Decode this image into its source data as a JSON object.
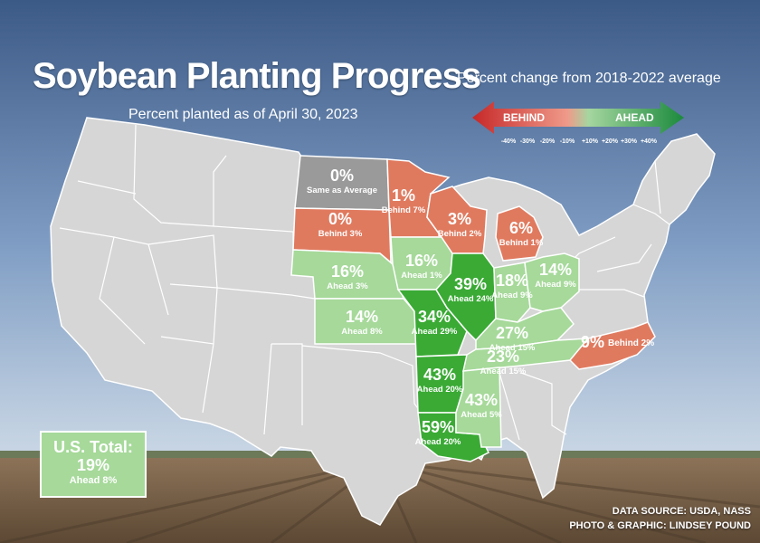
{
  "title": "Soybean Planting Progress",
  "subtitle": "Percent planted as of April 30, 2023",
  "legend": {
    "title": "Percent change from 2018-2022 average",
    "behind_label": "BEHIND",
    "ahead_label": "AHEAD",
    "ticks": [
      "-40%",
      "-30%",
      "-20%",
      "-10%",
      "+10%",
      "+20%",
      "+30%",
      "+40%"
    ],
    "colors": {
      "behind": "#e07a5f",
      "ahead": "#3aaa35",
      "same": "#9a9a9a",
      "no_data": "#d6d6d6"
    }
  },
  "states": [
    {
      "id": "ND",
      "pct": "0%",
      "note": "Same as Average",
      "status": "same"
    },
    {
      "id": "SD",
      "pct": "0%",
      "note": "Behind 3%",
      "status": "behind"
    },
    {
      "id": "NE",
      "pct": "16%",
      "note": "Ahead 3%",
      "status": "ahead"
    },
    {
      "id": "KS",
      "pct": "14%",
      "note": "Ahead 8%",
      "status": "ahead"
    },
    {
      "id": "MN",
      "pct": "1%",
      "note": "Behind 7%",
      "status": "behind"
    },
    {
      "id": "IA",
      "pct": "16%",
      "note": "Ahead 1%",
      "status": "ahead"
    },
    {
      "id": "MO",
      "pct": "34%",
      "note": "Ahead 29%",
      "status": "ahead"
    },
    {
      "id": "AR",
      "pct": "43%",
      "note": "Ahead 20%",
      "status": "ahead"
    },
    {
      "id": "LA",
      "pct": "59%",
      "note": "Ahead 20%",
      "status": "ahead"
    },
    {
      "id": "WI",
      "pct": "3%",
      "note": "Behind 2%",
      "status": "behind"
    },
    {
      "id": "IL",
      "pct": "39%",
      "note": "Ahead 24%",
      "status": "ahead"
    },
    {
      "id": "MI",
      "pct": "6%",
      "note": "Behind 1%",
      "status": "behind"
    },
    {
      "id": "IN",
      "pct": "18%",
      "note": "Ahead 9%",
      "status": "ahead"
    },
    {
      "id": "OH",
      "pct": "14%",
      "note": "Ahead 9%",
      "status": "ahead"
    },
    {
      "id": "KY",
      "pct": "27%",
      "note": "Ahead 15%",
      "status": "ahead"
    },
    {
      "id": "TN",
      "pct": "23%",
      "note": "Ahead 15%",
      "status": "ahead"
    },
    {
      "id": "MS",
      "pct": "43%",
      "note": "Ahead 5%",
      "status": "ahead"
    },
    {
      "id": "NC",
      "pct": "9%",
      "note": "Behind 2%",
      "status": "behind"
    }
  ],
  "us_total": {
    "label": "U.S. Total:",
    "pct": "19%",
    "note": "Ahead 8%"
  },
  "credits": {
    "source": "DATA SOURCE: USDA, NASS",
    "author": "PHOTO & GRAPHIC: LINDSEY POUND"
  }
}
